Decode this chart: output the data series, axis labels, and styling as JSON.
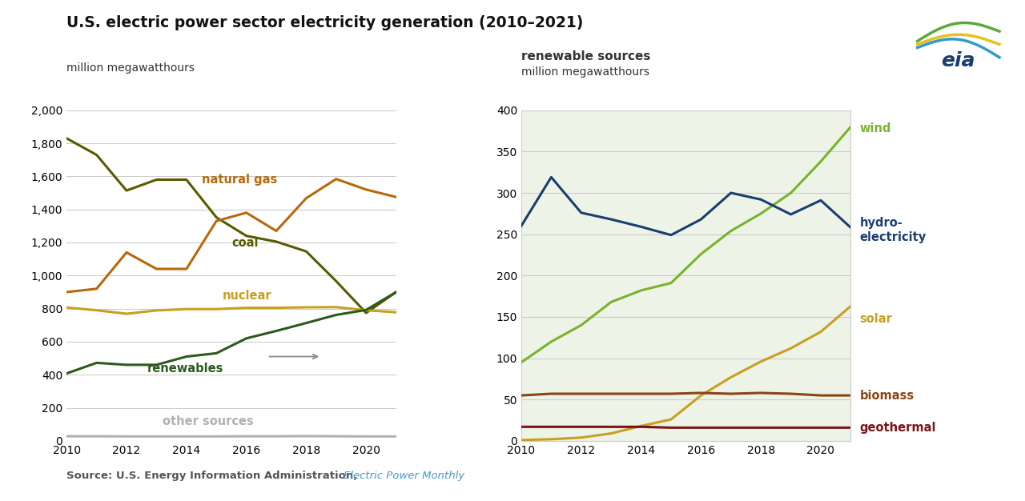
{
  "title": "U.S. electric power sector electricity generation (2010–2021)",
  "ylabel_left": "million megawatthours",
  "ylabel_right": "million megawatthours",
  "source_text": "Source: U.S. Energy Information Administration, ",
  "source_italic": "Electric Power Monthly",
  "years": [
    2010,
    2011,
    2012,
    2013,
    2014,
    2015,
    2016,
    2017,
    2018,
    2019,
    2020,
    2021
  ],
  "coal": [
    1830,
    1730,
    1514,
    1580,
    1580,
    1352,
    1240,
    1205,
    1146,
    966,
    774,
    900
  ],
  "natural_gas": [
    900,
    920,
    1140,
    1040,
    1040,
    1330,
    1380,
    1270,
    1468,
    1584,
    1520,
    1475
  ],
  "nuclear": [
    807,
    790,
    769,
    789,
    797,
    797,
    805,
    805,
    808,
    809,
    790,
    778
  ],
  "renewables": [
    408,
    472,
    460,
    460,
    510,
    530,
    620,
    665,
    713,
    762,
    792,
    900
  ],
  "other": [
    28,
    28,
    27,
    27,
    27,
    27,
    28,
    28,
    29,
    28,
    27,
    27
  ],
  "wind": [
    95,
    120,
    140,
    168,
    182,
    191,
    226,
    254,
    275,
    300,
    338,
    380
  ],
  "hydro": [
    260,
    319,
    276,
    268,
    259,
    249,
    268,
    300,
    292,
    274,
    291,
    258
  ],
  "solar": [
    1,
    2,
    4,
    9,
    18,
    26,
    55,
    77,
    96,
    112,
    132,
    163
  ],
  "biomass": [
    55,
    57,
    57,
    57,
    57,
    57,
    58,
    57,
    58,
    57,
    55,
    55
  ],
  "geothermal": [
    17,
    17,
    17,
    17,
    17,
    16,
    16,
    16,
    16,
    16,
    16,
    16
  ],
  "coal_color": "#5a5a00",
  "natural_gas_color": "#b8690a",
  "nuclear_color": "#c8a020",
  "renewables_color": "#2d5a1b",
  "other_color": "#b0b0b0",
  "wind_color": "#7ab329",
  "hydro_color": "#1a3f6f",
  "solar_color": "#c8a020",
  "biomass_color": "#8b4513",
  "geothermal_color": "#7b1414",
  "left_ylim": [
    0,
    2000
  ],
  "right_ylim": [
    0,
    400
  ],
  "left_yticks": [
    0,
    200,
    400,
    600,
    800,
    1000,
    1200,
    1400,
    1600,
    1800,
    2000
  ],
  "right_yticks": [
    0,
    50,
    100,
    150,
    200,
    250,
    300,
    350,
    400
  ],
  "xticks": [
    2010,
    2012,
    2014,
    2016,
    2018,
    2020
  ],
  "right_bg_color": "#eef3e8",
  "grid_color": "#cccccc",
  "lw": 2.2
}
